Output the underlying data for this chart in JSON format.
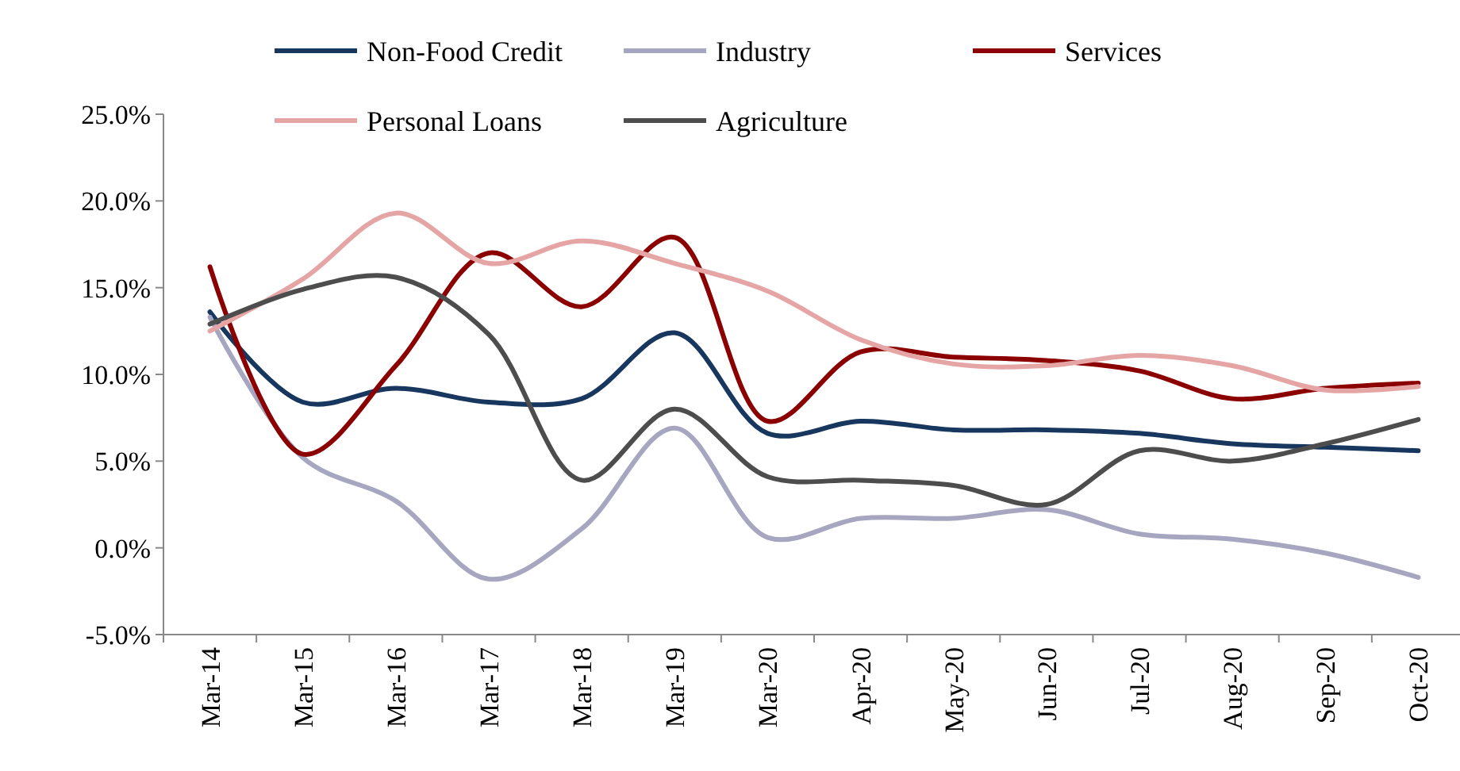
{
  "chart_data": {
    "type": "line",
    "categories": [
      "Mar-14",
      "Mar-15",
      "Mar-16",
      "Mar-17",
      "Mar-18",
      "Mar-19",
      "Mar-20",
      "Apr-20",
      "May-20",
      "Jun-20",
      "Jul-20",
      "Aug-20",
      "Sep-20",
      "Oct-20"
    ],
    "ylim": [
      -5,
      25
    ],
    "yticks": [
      {
        "value": -5,
        "label": "-5.0%"
      },
      {
        "value": 0,
        "label": "0.0%"
      },
      {
        "value": 5,
        "label": "5.0%"
      },
      {
        "value": 10,
        "label": "10.0%"
      },
      {
        "value": 15,
        "label": "15.0%"
      },
      {
        "value": 20,
        "label": "20.0%"
      },
      {
        "value": 25,
        "label": "25.0%"
      }
    ],
    "grid": false,
    "legend": "top",
    "marker": "none",
    "line_style": "solid",
    "series": [
      {
        "name": "Non-Food Credit",
        "color": "#17375e",
        "values": [
          13.6,
          8.4,
          9.2,
          8.4,
          8.6,
          12.4,
          6.6,
          7.3,
          6.8,
          6.8,
          6.6,
          6.0,
          5.8,
          5.6
        ]
      },
      {
        "name": "Industry",
        "color": "#a6a6c0",
        "values": [
          13.3,
          5.2,
          2.7,
          -1.8,
          1.1,
          6.9,
          0.6,
          1.7,
          1.7,
          2.2,
          0.8,
          0.5,
          -0.3,
          -1.7
        ]
      },
      {
        "name": "Services",
        "color": "#8b0000",
        "values": [
          16.2,
          5.4,
          10.5,
          17.0,
          13.9,
          17.9,
          7.3,
          11.3,
          11.0,
          10.8,
          10.2,
          8.6,
          9.2,
          9.5
        ]
      },
      {
        "name": "Personal Loans",
        "color": "#e6a5a5",
        "values": [
          12.5,
          15.5,
          19.3,
          16.4,
          17.7,
          16.4,
          14.8,
          12.0,
          10.6,
          10.5,
          11.1,
          10.5,
          9.1,
          9.3
        ]
      },
      {
        "name": "Agriculture",
        "color": "#4d4d4d",
        "values": [
          12.9,
          14.9,
          15.6,
          12.3,
          3.9,
          8.0,
          4.1,
          3.9,
          3.6,
          2.5,
          5.6,
          5.0,
          6.0,
          7.4
        ]
      }
    ]
  }
}
